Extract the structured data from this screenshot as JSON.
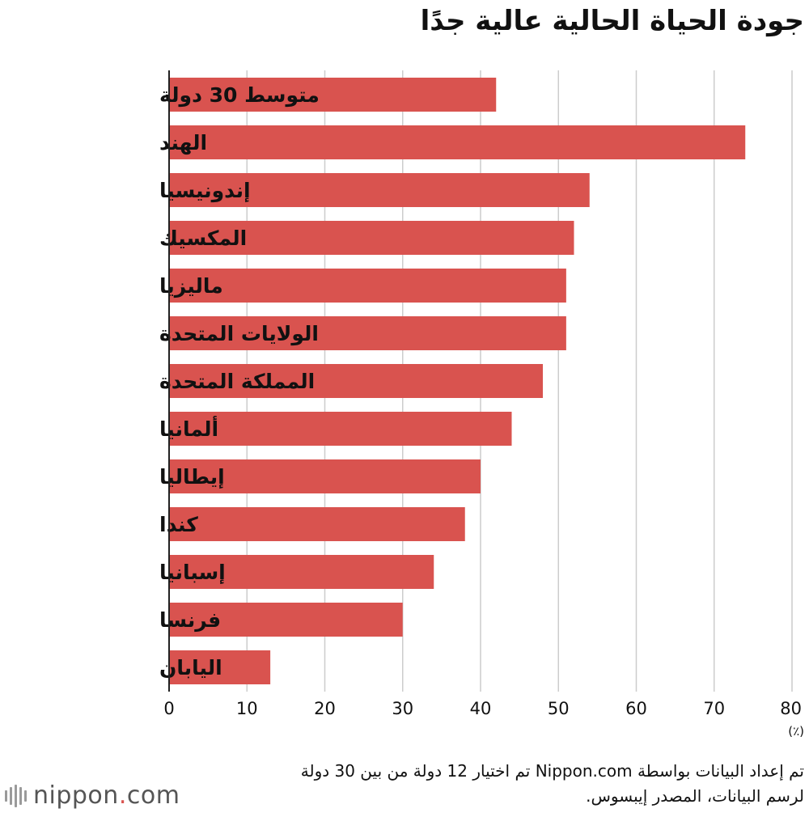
{
  "chart_data": {
    "type": "bar",
    "orientation": "horizontal",
    "title": "جودة الحياة الحالية عالية جدًا",
    "categories": [
      "متوسط 30 دولة",
      "الهند",
      "إندونيسيا",
      "المكسيك",
      "ماليزيا",
      "الولايات المتحدة",
      "المملكة المتحدة",
      "ألمانيا",
      "إيطاليا",
      "كندا",
      "إسبانيا",
      "فرنسا",
      "اليابان"
    ],
    "values": [
      42,
      74,
      54,
      52,
      51,
      51,
      48,
      44,
      40,
      38,
      34,
      30,
      13
    ],
    "xlim": [
      0,
      80
    ],
    "xticks": [
      0,
      10,
      20,
      30,
      40,
      50,
      60,
      70,
      80
    ],
    "xlabel": "(٪)",
    "ylabel": "",
    "grid": true,
    "bar_color": "#d9534f"
  },
  "note": {
    "line1": "تم إعداد البيانات بواسطة Nippon.com تم اختيار 12 دولة من بين 30 دولة",
    "line2": "لرسم البيانات، المصدر إيبسوس."
  },
  "logo": {
    "name": "nippon",
    "dot": ".",
    "suffix": "com"
  },
  "colors": {
    "accent": "#d9534f",
    "grid": "#cccccc",
    "axis": "#222222",
    "logo_gray": "#555555"
  }
}
